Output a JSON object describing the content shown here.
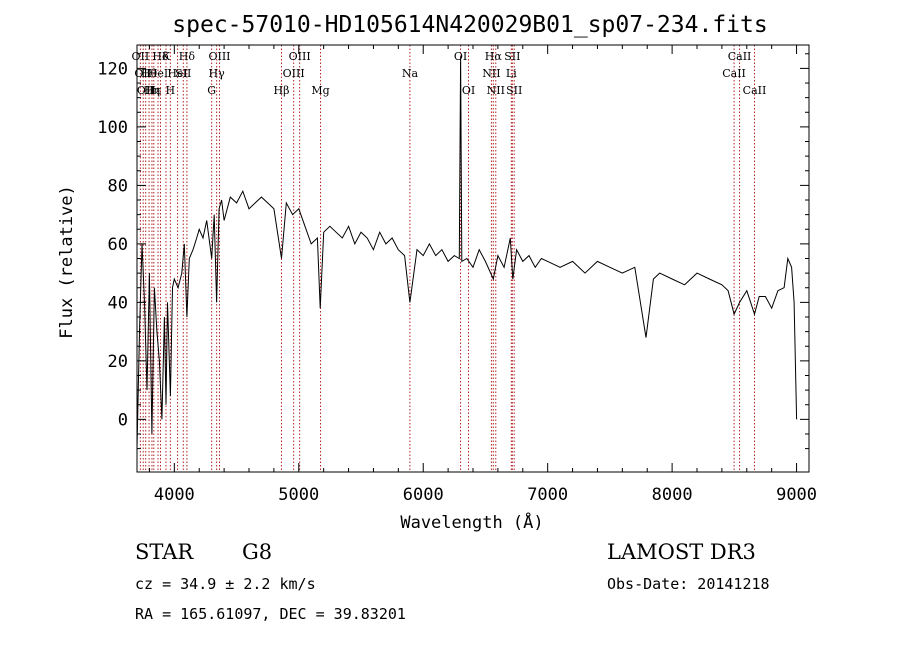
{
  "chart_data": {
    "type": "line",
    "title": "spec-57010-HD105614N420029B01_sp07-234.fits",
    "xlabel": "Wavelength (Å)",
    "ylabel": "Flux (relative)",
    "xlim": [
      3700,
      9100
    ],
    "ylim": [
      -18,
      128
    ],
    "xticks": [
      4000,
      5000,
      6000,
      7000,
      8000,
      9000
    ],
    "yticks": [
      0,
      20,
      40,
      60,
      80,
      100,
      120
    ],
    "grid": false,
    "series": [
      {
        "x": [
          3700,
          3720,
          3740,
          3760,
          3780,
          3800,
          3820,
          3840,
          3860,
          3880,
          3900,
          3920,
          3933,
          3945,
          3968,
          3985,
          4000,
          4030,
          4060,
          4080,
          4101,
          4120,
          4150,
          4180,
          4200,
          4230,
          4260,
          4300,
          4320,
          4340,
          4360,
          4380,
          4400,
          4450,
          4500,
          4550,
          4600,
          4650,
          4700,
          4750,
          4800,
          4861,
          4900,
          4950,
          5000,
          5050,
          5100,
          5150,
          5172,
          5200,
          5250,
          5300,
          5350,
          5400,
          5450,
          5500,
          5550,
          5600,
          5650,
          5700,
          5750,
          5800,
          5850,
          5893,
          5950,
          6000,
          6050,
          6100,
          6150,
          6200,
          6250,
          6290,
          6300,
          6310,
          6350,
          6400,
          6450,
          6500,
          6563,
          6600,
          6650,
          6700,
          6720,
          6750,
          6800,
          6850,
          6900,
          6950,
          7000,
          7100,
          7200,
          7300,
          7400,
          7500,
          7600,
          7700,
          7790,
          7850,
          7900,
          8000,
          8100,
          8200,
          8300,
          8400,
          8450,
          8498,
          8542,
          8600,
          8662,
          8700,
          8750,
          8800,
          8850,
          8900,
          8930,
          8960,
          8980,
          9000
        ],
        "y": [
          -10,
          30,
          60,
          40,
          10,
          50,
          -5,
          45,
          30,
          20,
          0,
          35,
          5,
          40,
          8,
          45,
          48,
          45,
          50,
          60,
          35,
          55,
          58,
          62,
          65,
          62,
          68,
          55,
          70,
          40,
          72,
          75,
          68,
          76,
          74,
          78,
          72,
          74,
          76,
          74,
          72,
          55,
          74,
          70,
          72,
          66,
          60,
          62,
          38,
          64,
          66,
          64,
          62,
          66,
          60,
          64,
          62,
          58,
          64,
          60,
          62,
          58,
          56,
          40,
          58,
          56,
          60,
          56,
          58,
          54,
          56,
          55,
          124,
          54,
          55,
          52,
          58,
          54,
          48,
          56,
          52,
          62,
          48,
          58,
          54,
          56,
          52,
          55,
          54,
          52,
          54,
          50,
          54,
          52,
          50,
          52,
          28,
          48,
          50,
          48,
          46,
          50,
          48,
          46,
          44,
          36,
          40,
          44,
          36,
          42,
          42,
          38,
          44,
          45,
          55,
          52,
          40,
          0
        ]
      }
    ],
    "line_markers": [
      {
        "wl": 3727,
        "row": 0,
        "label": "OII"
      },
      {
        "wl": 3750,
        "row": 1,
        "label": "OII"
      },
      {
        "wl": 3770,
        "row": 2,
        "label": "OII"
      },
      {
        "wl": 3797,
        "row": 1,
        "label": "Hθ"
      },
      {
        "wl": 3820,
        "row": 2,
        "label": "Hη"
      },
      {
        "wl": 3835,
        "row": 2,
        "label": "Hε"
      },
      {
        "wl": 3869,
        "row": 1,
        "label": "HeI"
      },
      {
        "wl": 3889,
        "row": 0,
        "label": "Hδ"
      },
      {
        "wl": 3933,
        "row": 0,
        "label": "K"
      },
      {
        "wl": 3968,
        "row": 2,
        "label": "H"
      },
      {
        "wl": 4026,
        "row": 1,
        "label": "HeI"
      },
      {
        "wl": 4072,
        "row": 1,
        "label": "SII"
      },
      {
        "wl": 4101,
        "row": 0,
        "label": "Hδ"
      },
      {
        "wl": 4300,
        "row": 2,
        "label": "G"
      },
      {
        "wl": 4340,
        "row": 1,
        "label": "Hγ"
      },
      {
        "wl": 4363,
        "row": 0,
        "label": "OIII"
      },
      {
        "wl": 4861,
        "row": 2,
        "label": "Hβ"
      },
      {
        "wl": 4959,
        "row": 1,
        "label": "OIII"
      },
      {
        "wl": 5007,
        "row": 0,
        "label": "OIII"
      },
      {
        "wl": 5175,
        "row": 2,
        "label": "Mg"
      },
      {
        "wl": 5893,
        "row": 1,
        "label": "Na"
      },
      {
        "wl": 6300,
        "row": 0,
        "label": "OI"
      },
      {
        "wl": 6364,
        "row": 2,
        "label": "OI"
      },
      {
        "wl": 6548,
        "row": 1,
        "label": "NII"
      },
      {
        "wl": 6563,
        "row": 0,
        "label": "Hα"
      },
      {
        "wl": 6583,
        "row": 2,
        "label": "NII"
      },
      {
        "wl": 6708,
        "row": 1,
        "label": "Li"
      },
      {
        "wl": 6716,
        "row": 0,
        "label": "SII"
      },
      {
        "wl": 6731,
        "row": 2,
        "label": "SII"
      },
      {
        "wl": 8498,
        "row": 1,
        "label": "CaII"
      },
      {
        "wl": 8542,
        "row": 0,
        "label": "CaII"
      },
      {
        "wl": 8662,
        "row": 2,
        "label": "CaII"
      }
    ],
    "annotations": {
      "class_label": "STAR",
      "subclass": "G8",
      "survey": "LAMOST DR3",
      "redshift": "cz = 34.9 ± 2.2 km/s",
      "obs_date": "Obs-Date: 20141218",
      "coords": "RA = 165.61097, DEC =  39.83201"
    },
    "colors": {
      "spectrum": "#000000",
      "marker_line": "#b22222",
      "frame": "#000000"
    }
  }
}
